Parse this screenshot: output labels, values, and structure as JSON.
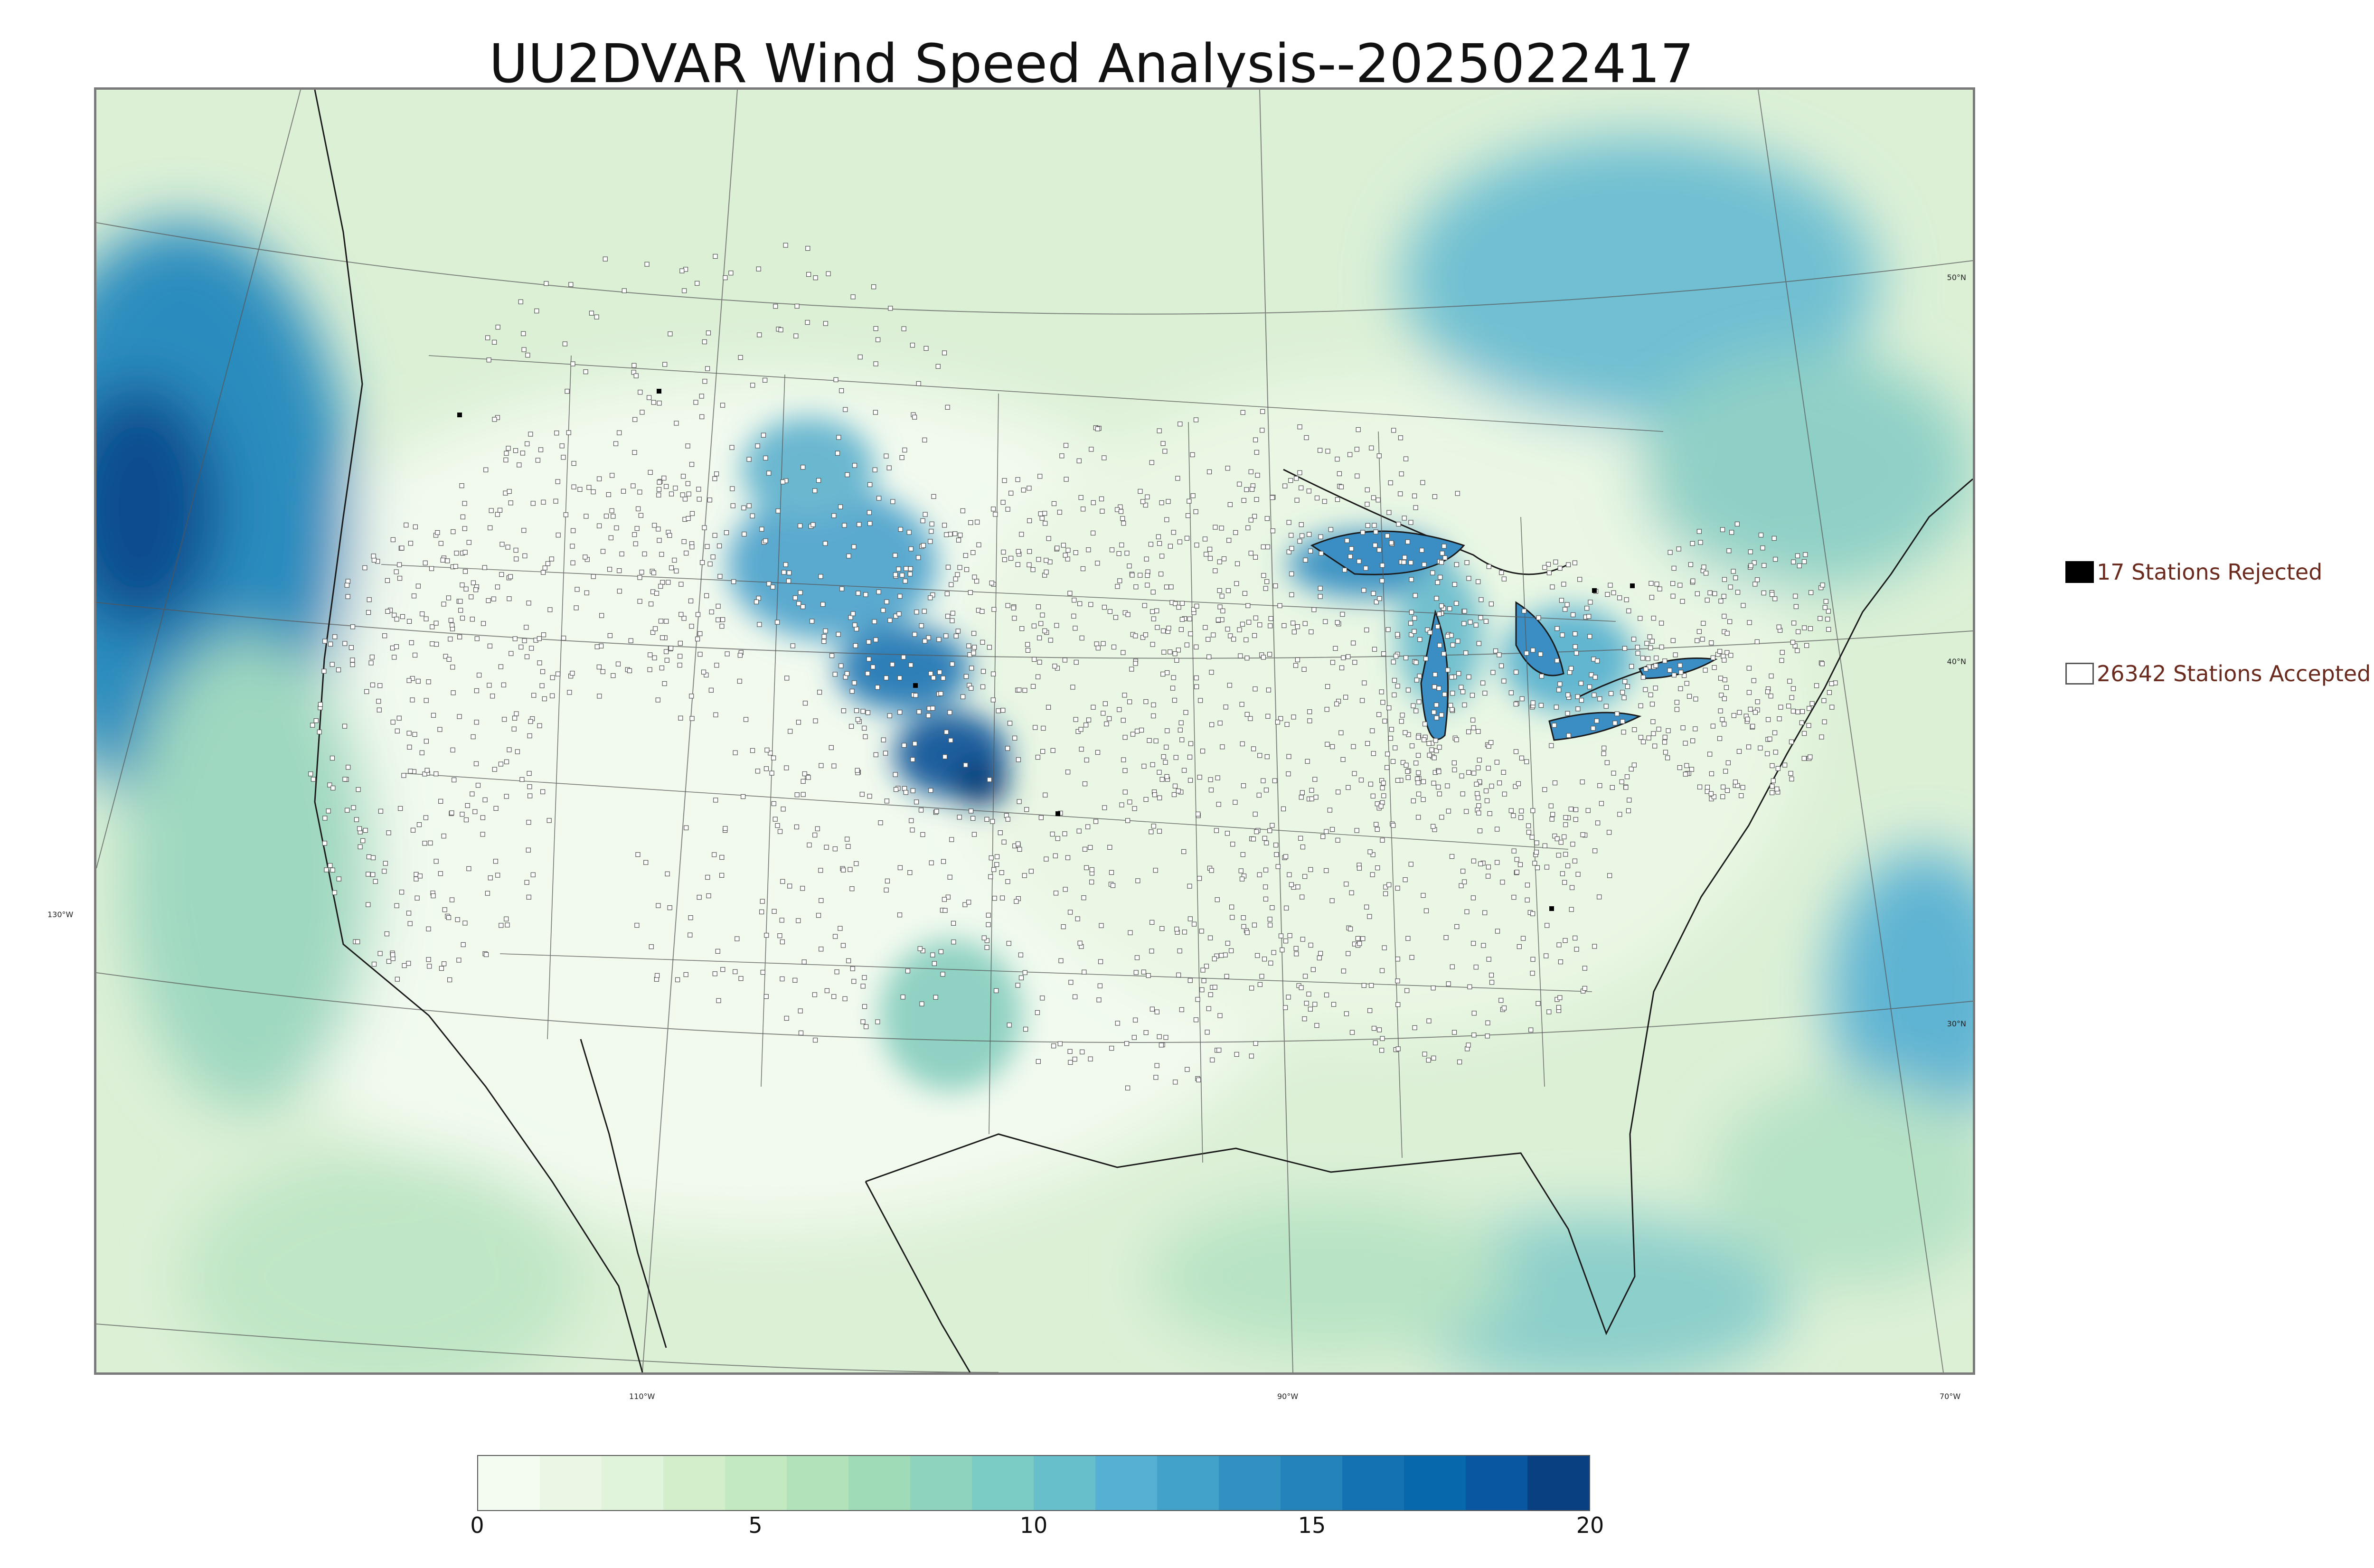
{
  "title": "UU2DVAR Wind Speed Analysis--2025022417",
  "map": {
    "lat_labels": [
      "50°N",
      "40°N",
      "30°N"
    ],
    "lon_labels_bottom": [
      "110°W",
      "90°W",
      "70°W"
    ],
    "lon_label_left": "130°W"
  },
  "legend": {
    "rejected": {
      "label": "17 Stations Rejected",
      "count": 17,
      "swatch_color": "#000000"
    },
    "accepted": {
      "label": "26342 Stations Accepted",
      "count": 26342,
      "swatch_color": "#ffffff"
    }
  },
  "colorbar": {
    "min": 0,
    "max": 20,
    "tick_labels": [
      "0",
      "5",
      "10",
      "15",
      "20"
    ],
    "colors": [
      "#f4fbf0",
      "#eaf7e4",
      "#e0f3db",
      "#d2eecb",
      "#c3e9c1",
      "#b2e2ba",
      "#a0dbb8",
      "#8ed3bd",
      "#7bccc4",
      "#67bfcb",
      "#55b0d4",
      "#43a2ca",
      "#3391c2",
      "#2383ba",
      "#1572b2",
      "#0868ac",
      "#0857a0",
      "#084081"
    ]
  }
}
